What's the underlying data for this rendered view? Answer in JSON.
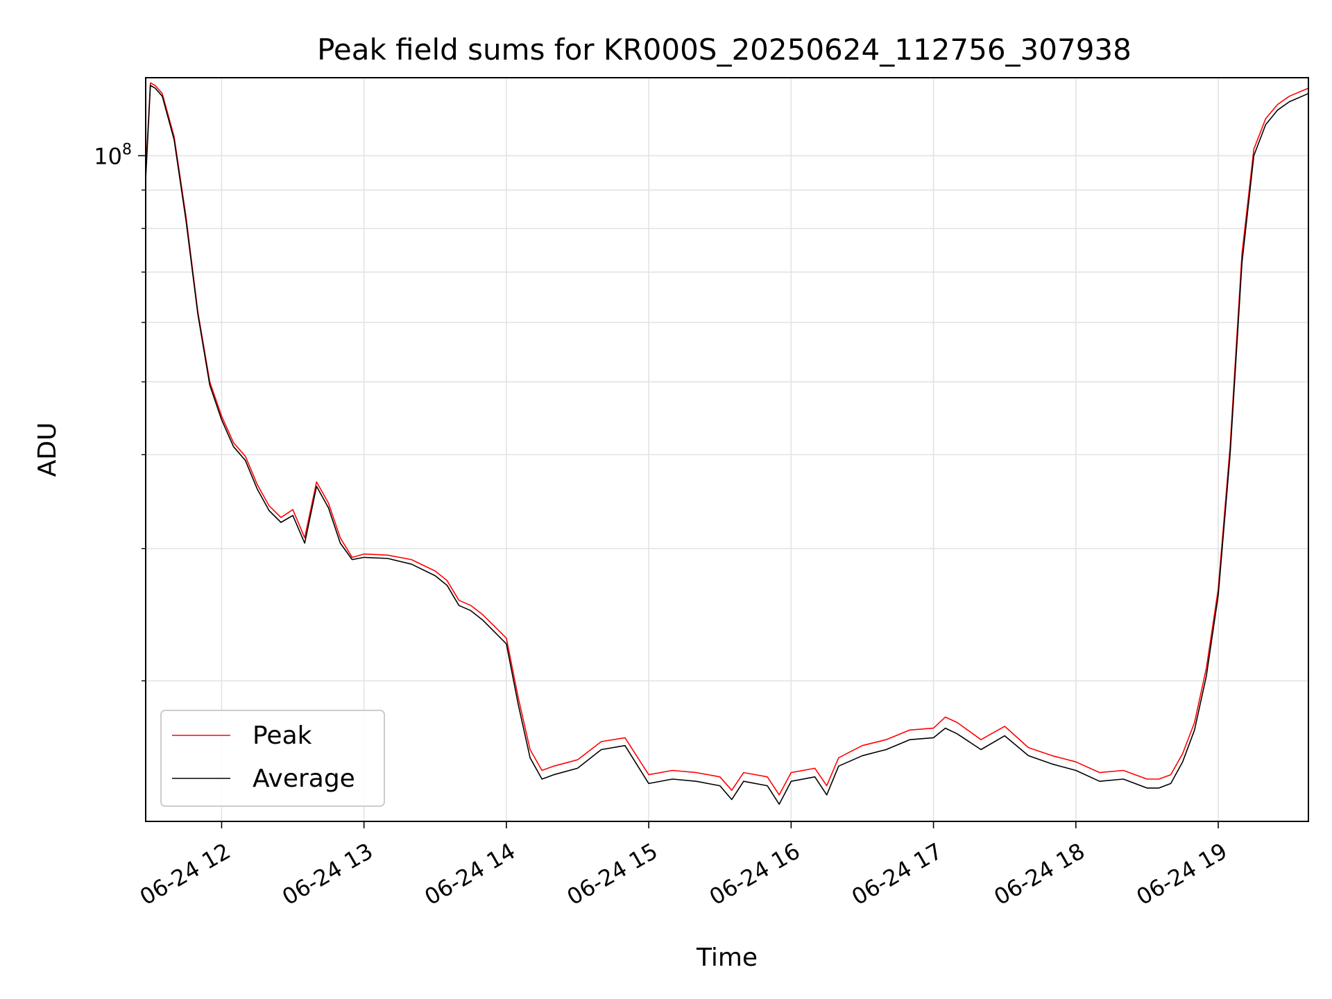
{
  "chart_data": {
    "type": "line",
    "title": "Peak field sums for KR000S_20250624_112756_307938",
    "xlabel": "Time",
    "ylabel": "ADU",
    "y_scale": "log",
    "x_unit": "time of day 2025-06-24 (hours)",
    "xlim": [
      "11:28",
      "19:38"
    ],
    "ylim": [
      13000000,
      127000000
    ],
    "x_ticks": [
      {
        "value": "12:00",
        "label": "06-24 12"
      },
      {
        "value": "13:00",
        "label": "06-24 13"
      },
      {
        "value": "14:00",
        "label": "06-24 14"
      },
      {
        "value": "15:00",
        "label": "06-24 15"
      },
      {
        "value": "16:00",
        "label": "06-24 16"
      },
      {
        "value": "17:00",
        "label": "06-24 17"
      },
      {
        "value": "18:00",
        "label": "06-24 18"
      },
      {
        "value": "19:00",
        "label": "06-24 19"
      }
    ],
    "y_ticks_labeled": [
      {
        "value": 100000000,
        "base": "10",
        "exp": "8"
      }
    ],
    "y_minor_ticks": [
      20000000,
      30000000,
      40000000,
      50000000,
      60000000,
      70000000,
      80000000,
      90000000
    ],
    "grid": true,
    "legend_position": "lower-left",
    "x_time": [
      "11:28",
      "11:30",
      "11:32",
      "11:35",
      "11:40",
      "11:45",
      "11:50",
      "11:55",
      "12:00",
      "12:05",
      "12:10",
      "12:15",
      "12:20",
      "12:25",
      "12:30",
      "12:35",
      "12:40",
      "12:45",
      "12:50",
      "12:55",
      "13:00",
      "13:10",
      "13:20",
      "13:30",
      "13:35",
      "13:40",
      "13:45",
      "13:50",
      "14:00",
      "14:05",
      "14:10",
      "14:15",
      "14:20",
      "14:30",
      "14:40",
      "14:50",
      "15:00",
      "15:10",
      "15:20",
      "15:30",
      "15:35",
      "15:40",
      "15:50",
      "15:55",
      "16:00",
      "16:10",
      "16:15",
      "16:20",
      "16:30",
      "16:40",
      "16:50",
      "17:00",
      "17:05",
      "17:10",
      "17:20",
      "17:30",
      "17:40",
      "17:50",
      "18:00",
      "18:10",
      "18:20",
      "18:30",
      "18:35",
      "18:40",
      "18:45",
      "18:50",
      "18:55",
      "19:00",
      "19:05",
      "19:10",
      "19:15",
      "19:20",
      "19:25",
      "19:30",
      "19:38"
    ],
    "series": [
      {
        "name": "Peak",
        "color": "#ff0000",
        "values": [
          95000000,
          125000000,
          124000000,
          121000000,
          106000000,
          83000000,
          62000000,
          50000000,
          45000000,
          41500000,
          39800000,
          36500000,
          34200000,
          33000000,
          33800000,
          31000000,
          36800000,
          34500000,
          31000000,
          29200000,
          29500000,
          29400000,
          29000000,
          28000000,
          27200000,
          25600000,
          25200000,
          24500000,
          22800000,
          19000000,
          16200000,
          15200000,
          15400000,
          15700000,
          16600000,
          16800000,
          15000000,
          15200000,
          15100000,
          14900000,
          14300000,
          15100000,
          14900000,
          14100000,
          15100000,
          15300000,
          14500000,
          15800000,
          16400000,
          16700000,
          17200000,
          17300000,
          17900000,
          17600000,
          16700000,
          17400000,
          16300000,
          15900000,
          15600000,
          15100000,
          15200000,
          14800000,
          14800000,
          15000000,
          16000000,
          17600000,
          20800000,
          26500000,
          41000000,
          74000000,
          102000000,
          112000000,
          117000000,
          120000000,
          123000000
        ]
      },
      {
        "name": "Average",
        "color": "#000000",
        "values": [
          93000000,
          124000000,
          123000000,
          120000000,
          105000000,
          82000000,
          61500000,
          49500000,
          44500000,
          41000000,
          39300000,
          36000000,
          33700000,
          32500000,
          33200000,
          30500000,
          36300000,
          34000000,
          30500000,
          29000000,
          29200000,
          29100000,
          28600000,
          27600000,
          26800000,
          25200000,
          24800000,
          24100000,
          22400000,
          18600000,
          15800000,
          14800000,
          15000000,
          15300000,
          16200000,
          16400000,
          14600000,
          14800000,
          14700000,
          14500000,
          13900000,
          14700000,
          14500000,
          13700000,
          14700000,
          14900000,
          14100000,
          15400000,
          15900000,
          16200000,
          16700000,
          16800000,
          17300000,
          17000000,
          16200000,
          16900000,
          15900000,
          15500000,
          15200000,
          14700000,
          14800000,
          14400000,
          14400000,
          14600000,
          15600000,
          17200000,
          20300000,
          26000000,
          40000000,
          72000000,
          100000000,
          110000000,
          115000000,
          118000000,
          121000000
        ]
      }
    ]
  }
}
